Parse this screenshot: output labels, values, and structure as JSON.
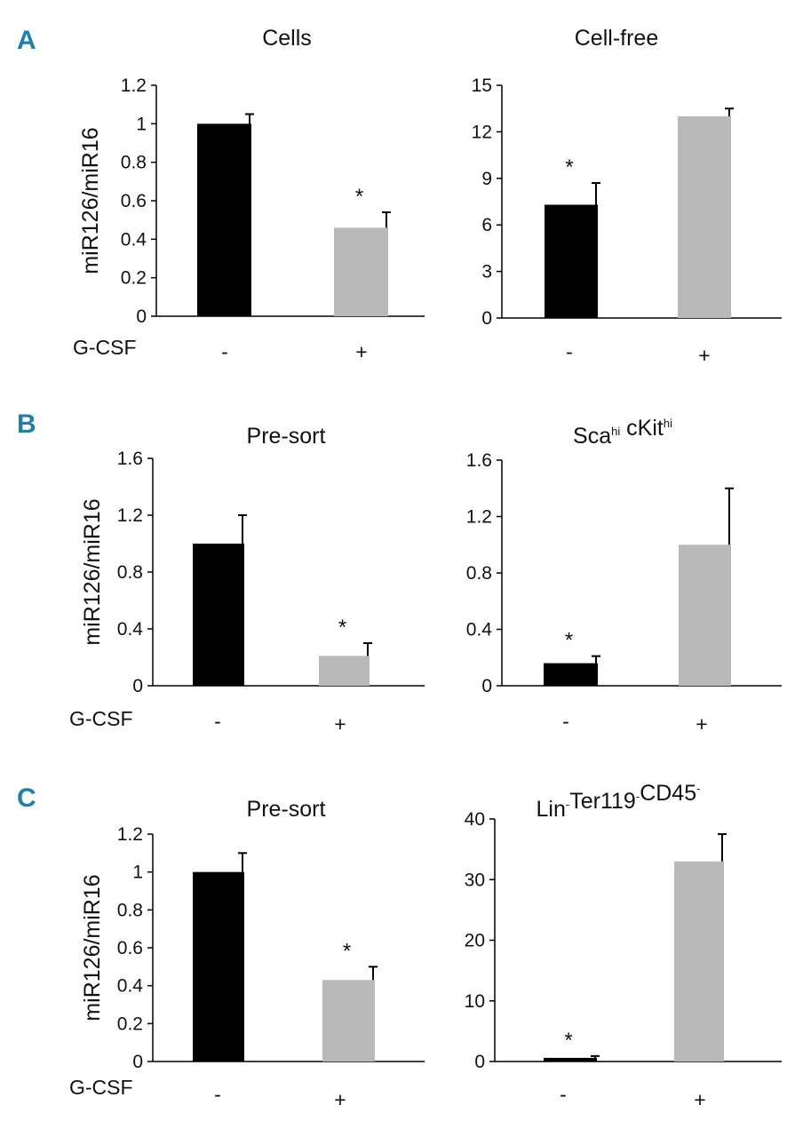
{
  "panel_labels": [
    "A",
    "B",
    "C"
  ],
  "ylabel": "miR126/miR16",
  "condition_label": "G-CSF",
  "conditions": [
    "-",
    "+"
  ],
  "colors": {
    "control": "#000000",
    "gcsf": "#b9b9b9",
    "panel_letter": "#1f7fa8"
  },
  "chart_data": [
    {
      "type": "bar",
      "panel": "A",
      "title": "Cells",
      "title_parts": [
        {
          "t": "Cells"
        }
      ],
      "xlabel": "",
      "ylabel": "miR126/miR16",
      "categories": [
        "-",
        "+"
      ],
      "values": [
        1.0,
        0.46
      ],
      "errors": [
        0.05,
        0.08
      ],
      "significance": [
        "",
        "*"
      ],
      "ylim": [
        0,
        1.2
      ],
      "ticks": [
        "0",
        "0.2",
        "0.4",
        "0.6",
        "0.8",
        "1",
        "1.2"
      ]
    },
    {
      "type": "bar",
      "panel": "A",
      "title": "Cell-free",
      "title_parts": [
        {
          "t": "Cell-free"
        }
      ],
      "xlabel": "",
      "ylabel": "",
      "categories": [
        "-",
        "+"
      ],
      "values": [
        7.3,
        13.0
      ],
      "errors": [
        1.4,
        0.5
      ],
      "significance": [
        "*",
        ""
      ],
      "ylim": [
        0,
        15
      ],
      "ticks": [
        "0",
        "3",
        "6",
        "9",
        "12",
        "15"
      ]
    },
    {
      "type": "bar",
      "panel": "B",
      "title": "Pre-sort",
      "title_parts": [
        {
          "t": "Pre-sort"
        }
      ],
      "xlabel": "",
      "ylabel": "miR126/miR16",
      "categories": [
        "-",
        "+"
      ],
      "values": [
        1.0,
        0.21
      ],
      "errors": [
        0.2,
        0.09
      ],
      "significance": [
        "",
        "*"
      ],
      "ylim": [
        0,
        1.6
      ],
      "ticks": [
        "0",
        "0.4",
        "0.8",
        "1.2",
        "1.6"
      ]
    },
    {
      "type": "bar",
      "panel": "B",
      "title": "Scahi cKithi",
      "title_parts": [
        {
          "t": "Sca"
        },
        {
          "t": "hi",
          "sup": true
        },
        {
          "t": " cKit"
        },
        {
          "t": "hi",
          "sup": true
        }
      ],
      "xlabel": "",
      "ylabel": "",
      "categories": [
        "-",
        "+"
      ],
      "values": [
        0.16,
        1.0
      ],
      "errors": [
        0.05,
        0.4
      ],
      "significance": [
        "*",
        ""
      ],
      "ylim": [
        0,
        1.6
      ],
      "ticks": [
        "0",
        "0.4",
        "0.8",
        "1.2",
        "1.6"
      ]
    },
    {
      "type": "bar",
      "panel": "C",
      "title": "Pre-sort",
      "title_parts": [
        {
          "t": "Pre-sort"
        }
      ],
      "xlabel": "",
      "ylabel": "miR126/miR16",
      "categories": [
        "-",
        "+"
      ],
      "values": [
        1.0,
        0.43
      ],
      "errors": [
        0.1,
        0.07
      ],
      "significance": [
        "",
        "*"
      ],
      "ylim": [
        0,
        1.2
      ],
      "ticks": [
        "0",
        "0.2",
        "0.4",
        "0.6",
        "0.8",
        "1",
        "1.2"
      ]
    },
    {
      "type": "bar",
      "panel": "C",
      "title": "Lin-Ter119-CD45-",
      "title_parts": [
        {
          "t": "Lin"
        },
        {
          "t": "-",
          "sup": true
        },
        {
          "t": "Ter119"
        },
        {
          "t": "-",
          "sup": true
        },
        {
          "t": "CD45"
        },
        {
          "t": "-",
          "sup": true
        }
      ],
      "xlabel": "",
      "ylabel": "",
      "categories": [
        "-",
        "+"
      ],
      "values": [
        0.6,
        33.0
      ],
      "errors": [
        0.3,
        4.5
      ],
      "significance": [
        "*",
        ""
      ],
      "ylim": [
        0,
        40
      ],
      "ticks": [
        "0",
        "10",
        "20",
        "30",
        "40"
      ]
    }
  ]
}
